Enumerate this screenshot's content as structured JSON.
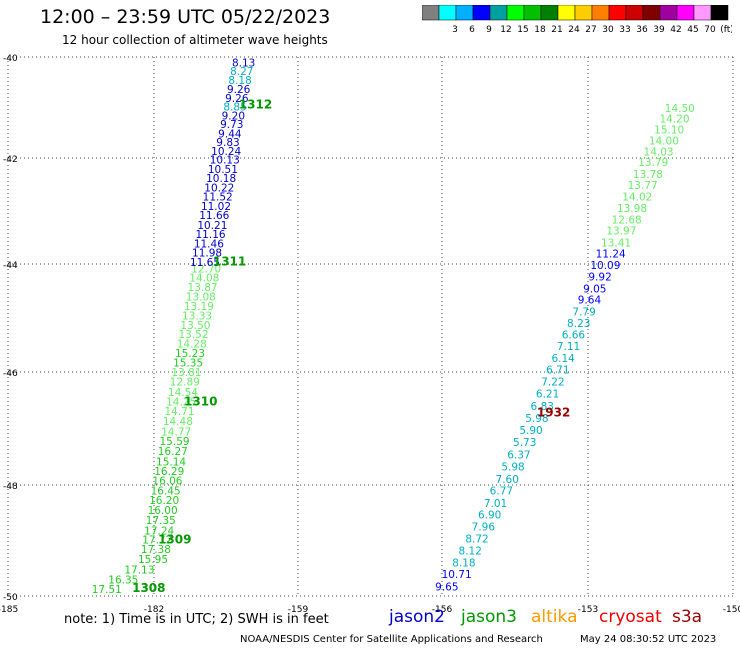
{
  "header": {
    "title": "12:00 – 23:59 UTC 05/22/2023",
    "subtitle": "12 hour collection of altimeter wave heights"
  },
  "legend": {
    "swatches": [
      {
        "color": "#808080",
        "label": ""
      },
      {
        "color": "#00ffff",
        "label": "3"
      },
      {
        "color": "#00b0ff",
        "label": "6"
      },
      {
        "color": "#0000ff",
        "label": "9"
      },
      {
        "color": "#00a0a0",
        "label": "12"
      },
      {
        "color": "#00ff00",
        "label": "15"
      },
      {
        "color": "#00c000",
        "label": "18"
      },
      {
        "color": "#008000",
        "label": "21"
      },
      {
        "color": "#ffff00",
        "label": "24"
      },
      {
        "color": "#ffcc00",
        "label": "27"
      },
      {
        "color": "#ff8000",
        "label": "30"
      },
      {
        "color": "#ff0000",
        "label": "33"
      },
      {
        "color": "#cc0000",
        "label": "36"
      },
      {
        "color": "#800000",
        "label": "39"
      },
      {
        "color": "#a000a0",
        "label": "42"
      },
      {
        "color": "#ff00ff",
        "label": "45"
      },
      {
        "color": "#ff99ff",
        "label": "70"
      },
      {
        "color": "#000000",
        "label": "(ft)"
      }
    ]
  },
  "chart_data": {
    "type": "scatter",
    "xlim": [
      -185,
      -150
    ],
    "ylim": [
      -50,
      -40
    ],
    "xticks": [
      {
        "v": -185,
        "label": "-185"
      },
      {
        "v": -182,
        "label": "-182"
      },
      {
        "v": -159,
        "label": "-159"
      },
      {
        "v": -156,
        "label": "-156"
      },
      {
        "v": -153,
        "label": "-153"
      },
      {
        "v": -150,
        "label": "-150"
      }
    ],
    "yticks": [
      {
        "v": -40,
        "label": "-40"
      },
      {
        "v": -42,
        "label": "-42"
      },
      {
        "v": -44,
        "label": "-44"
      },
      {
        "v": -46,
        "label": "-46"
      },
      {
        "v": -48,
        "label": "-48"
      },
      {
        "v": -50,
        "label": "-50"
      }
    ],
    "grid": true,
    "colors": {
      "c6": "#00b0c0",
      "c9": "#0000cc",
      "c12": "#0000ff",
      "c15": "#66ee66",
      "c18": "#22cc22",
      "c21": "#009900",
      "c30": "#990000"
    },
    "tracks": [
      {
        "points": [
          {
            "x": -182.97,
            "y": -49.87,
            "v": "17.51",
            "c": "c18"
          },
          {
            "x": -182.63,
            "y": -49.7,
            "v": "16.35",
            "c": "c18"
          },
          {
            "x": -182.3,
            "y": -49.52,
            "v": "17.13",
            "c": "c18"
          },
          {
            "x": -182.02,
            "y": -49.33,
            "v": "15.95",
            "c": "c18"
          },
          {
            "x": -181.7,
            "y": -49.15,
            "v": "17.38",
            "c": "c18"
          },
          {
            "x": -181.48,
            "y": -48.98,
            "v": "17.72",
            "c": "c18"
          },
          {
            "x": -181.17,
            "y": -48.82,
            "v": "17.24",
            "c": "c18"
          },
          {
            "x": -180.91,
            "y": -48.63,
            "v": "17.35",
            "c": "c18"
          },
          {
            "x": -180.62,
            "y": -48.45,
            "v": "16.00",
            "c": "c18"
          },
          {
            "x": -180.38,
            "y": -48.27,
            "v": "16.20",
            "c": "c18"
          },
          {
            "x": -180.14,
            "y": -48.1,
            "v": "16.45",
            "c": "c18"
          },
          {
            "x": -179.85,
            "y": -47.92,
            "v": "16.06",
            "c": "c18"
          },
          {
            "x": -179.56,
            "y": -47.75,
            "v": "16.29",
            "c": "c18"
          },
          {
            "x": -179.27,
            "y": -47.58,
            "v": "15.14",
            "c": "c18"
          },
          {
            "x": -179.0,
            "y": -47.4,
            "v": "16.27",
            "c": "c18"
          },
          {
            "x": -178.72,
            "y": -47.22,
            "v": "15.59",
            "c": "c18"
          },
          {
            "x": -178.46,
            "y": -47.05,
            "v": "14.77",
            "c": "c15"
          },
          {
            "x": -178.19,
            "y": -46.87,
            "v": "14.48",
            "c": "c15"
          },
          {
            "x": -177.92,
            "y": -46.69,
            "v": "14.71",
            "c": "c15"
          },
          {
            "x": -177.67,
            "y": -46.52,
            "v": "14.25",
            "c": "c15"
          },
          {
            "x": -177.38,
            "y": -46.35,
            "v": "14.54",
            "c": "c15"
          },
          {
            "x": -177.08,
            "y": -46.17,
            "v": "12.89",
            "c": "c15"
          },
          {
            "x": -176.82,
            "y": -46.0,
            "v": "13.81",
            "c": "c15"
          },
          {
            "x": -176.55,
            "y": -45.82,
            "v": "15.35",
            "c": "c18"
          },
          {
            "x": -176.25,
            "y": -45.65,
            "v": "15.23",
            "c": "c18"
          },
          {
            "x": -175.97,
            "y": -45.47,
            "v": "14.28",
            "c": "c15"
          },
          {
            "x": -175.69,
            "y": -45.3,
            "v": "13.52",
            "c": "c15"
          },
          {
            "x": -175.38,
            "y": -45.13,
            "v": "13.50",
            "c": "c15"
          },
          {
            "x": -175.12,
            "y": -44.95,
            "v": "13.33",
            "c": "c15"
          },
          {
            "x": -174.83,
            "y": -44.78,
            "v": "13.19",
            "c": "c15"
          },
          {
            "x": -174.52,
            "y": -44.6,
            "v": "13.08",
            "c": "c15"
          },
          {
            "x": -174.24,
            "y": -44.43,
            "v": "13.87",
            "c": "c15"
          },
          {
            "x": -173.96,
            "y": -44.25,
            "v": "14.08",
            "c": "c15"
          },
          {
            "x": -173.66,
            "y": -44.08,
            "v": "12.70",
            "c": "c15"
          }
        ],
        "label": {
          "x": -177.2,
          "y": -46.5,
          "text": "1310",
          "c": "c21"
        }
      },
      {
        "points": [
          {
            "x": -173.85,
            "y": -43.96,
            "v": "11.65",
            "c": "c9"
          },
          {
            "x": -173.52,
            "y": -43.78,
            "v": "11.98",
            "c": "c9"
          },
          {
            "x": -173.24,
            "y": -43.61,
            "v": "11.46",
            "c": "c9"
          },
          {
            "x": -172.97,
            "y": -43.43,
            "v": "11.16",
            "c": "c9"
          },
          {
            "x": -172.68,
            "y": -43.26,
            "v": "10.21",
            "c": "c9"
          },
          {
            "x": -172.37,
            "y": -43.08,
            "v": "11.66",
            "c": "c9"
          },
          {
            "x": -172.1,
            "y": -42.91,
            "v": "11.02",
            "c": "c9"
          },
          {
            "x": -171.83,
            "y": -42.73,
            "v": "11.52",
            "c": "c9"
          },
          {
            "x": -171.57,
            "y": -42.56,
            "v": "10.22",
            "c": "c9"
          },
          {
            "x": -171.28,
            "y": -42.38,
            "v": "10.18",
            "c": "c9"
          },
          {
            "x": -171.0,
            "y": -42.21,
            "v": "10.51",
            "c": "c9"
          },
          {
            "x": -170.7,
            "y": -42.03,
            "v": "10.13",
            "c": "c9"
          },
          {
            "x": -170.47,
            "y": -41.86,
            "v": "10.24",
            "c": "c9"
          },
          {
            "x": -170.18,
            "y": -41.68,
            "v": "9.83",
            "c": "c9"
          },
          {
            "x": -169.88,
            "y": -41.51,
            "v": "9.44",
            "c": "c9"
          },
          {
            "x": -169.58,
            "y": -41.33,
            "v": "9.73",
            "c": "c9"
          },
          {
            "x": -169.33,
            "y": -41.16,
            "v": "9.20",
            "c": "c9"
          },
          {
            "x": -169.05,
            "y": -40.98,
            "v": "8.85",
            "c": "c6"
          },
          {
            "x": -168.77,
            "y": -40.81,
            "v": "9.26",
            "c": "c9"
          },
          {
            "x": -168.48,
            "y": -40.63,
            "v": "9.26",
            "c": "c9"
          },
          {
            "x": -168.25,
            "y": -40.46,
            "v": "8.18",
            "c": "c6"
          },
          {
            "x": -167.98,
            "y": -40.28,
            "v": "8.27",
            "c": "c6"
          },
          {
            "x": -167.68,
            "y": -40.11,
            "v": "8.13",
            "c": "c9"
          }
        ],
        "label": {
          "x": -172.6,
          "y": -43.93,
          "text": "1311",
          "c": "c21"
        }
      },
      {
        "points": [
          {
            "x": -155.9,
            "y": -49.83,
            "v": "9.65",
            "c": "c12"
          },
          {
            "x": -155.7,
            "y": -49.6,
            "v": "10.71",
            "c": "c12"
          },
          {
            "x": -155.55,
            "y": -49.4,
            "v": "8.18",
            "c": "c6"
          },
          {
            "x": -155.42,
            "y": -49.18,
            "v": "8.12",
            "c": "c6"
          },
          {
            "x": -155.28,
            "y": -48.96,
            "v": "8.72",
            "c": "c6"
          },
          {
            "x": -155.15,
            "y": -48.75,
            "v": "7.96",
            "c": "c6"
          },
          {
            "x": -155.02,
            "y": -48.53,
            "v": "6.90",
            "c": "c6"
          },
          {
            "x": -154.9,
            "y": -48.32,
            "v": "7.01",
            "c": "c6"
          },
          {
            "x": -154.78,
            "y": -48.1,
            "v": "6.77",
            "c": "c6"
          },
          {
            "x": -154.66,
            "y": -47.89,
            "v": "7.60",
            "c": "c6"
          },
          {
            "x": -154.54,
            "y": -47.67,
            "v": "5.98",
            "c": "c6"
          },
          {
            "x": -154.42,
            "y": -47.46,
            "v": "6.37",
            "c": "c6"
          },
          {
            "x": -154.3,
            "y": -47.24,
            "v": "5.73",
            "c": "c6"
          },
          {
            "x": -154.17,
            "y": -47.03,
            "v": "5.90",
            "c": "c6"
          },
          {
            "x": -154.05,
            "y": -46.81,
            "v": "5.98",
            "c": "c6"
          },
          {
            "x": -153.94,
            "y": -46.6,
            "v": "6.83",
            "c": "c6"
          },
          {
            "x": -153.83,
            "y": -46.38,
            "v": "6.21",
            "c": "c6"
          },
          {
            "x": -153.72,
            "y": -46.17,
            "v": "7.22",
            "c": "c6"
          },
          {
            "x": -153.62,
            "y": -45.95,
            "v": "6.71",
            "c": "c6"
          },
          {
            "x": -153.51,
            "y": -45.74,
            "v": "6.14",
            "c": "c6"
          },
          {
            "x": -153.4,
            "y": -45.52,
            "v": "7.11",
            "c": "c6"
          },
          {
            "x": -153.3,
            "y": -45.31,
            "v": "6.66",
            "c": "c6"
          },
          {
            "x": -153.19,
            "y": -45.09,
            "v": "8.23",
            "c": "c6"
          },
          {
            "x": -153.08,
            "y": -44.88,
            "v": "7.79",
            "c": "c6"
          },
          {
            "x": -152.97,
            "y": -44.66,
            "v": "9.64",
            "c": "c12"
          },
          {
            "x": -152.86,
            "y": -44.45,
            "v": "9.05",
            "c": "c12"
          },
          {
            "x": -152.75,
            "y": -44.23,
            "v": "9.92",
            "c": "c12"
          },
          {
            "x": -152.64,
            "y": -44.02,
            "v": "10.09",
            "c": "c12"
          },
          {
            "x": -152.53,
            "y": -43.8,
            "v": "11.24",
            "c": "c12"
          },
          {
            "x": -152.42,
            "y": -43.59,
            "v": "13.41",
            "c": "c15"
          },
          {
            "x": -152.31,
            "y": -43.37,
            "v": "13.97",
            "c": "c15"
          },
          {
            "x": -152.2,
            "y": -43.16,
            "v": "12.68",
            "c": "c15"
          },
          {
            "x": -152.09,
            "y": -42.94,
            "v": "13.98",
            "c": "c15"
          },
          {
            "x": -151.98,
            "y": -42.73,
            "v": "14.02",
            "c": "c15"
          },
          {
            "x": -151.87,
            "y": -42.51,
            "v": "13.77",
            "c": "c15"
          },
          {
            "x": -151.76,
            "y": -42.3,
            "v": "13.78",
            "c": "c15"
          },
          {
            "x": -151.65,
            "y": -42.08,
            "v": "13.79",
            "c": "c15"
          },
          {
            "x": -151.54,
            "y": -41.87,
            "v": "14.03",
            "c": "c15"
          },
          {
            "x": -151.43,
            "y": -41.65,
            "v": "14.00",
            "c": "c15"
          },
          {
            "x": -151.32,
            "y": -41.44,
            "v": "15.10",
            "c": "c15"
          },
          {
            "x": -151.21,
            "y": -41.22,
            "v": "14.20",
            "c": "c15"
          },
          {
            "x": -151.1,
            "y": -41.01,
            "v": "14.50",
            "c": "c15"
          }
        ],
        "label": {
          "x": -154.05,
          "y": -46.7,
          "text": "1932",
          "c": "c30"
        }
      }
    ],
    "extra_labels": [
      {
        "x": -182.45,
        "y": -49.84,
        "text": "1308",
        "c": "c21"
      },
      {
        "x": -181.35,
        "y": -48.96,
        "text": "1309",
        "c": "c21"
      },
      {
        "x": -168.45,
        "y": -40.92,
        "text": "1312",
        "c": "c21"
      }
    ]
  },
  "footer": {
    "note": "note:  1) Time is in UTC;  2) SWH is in feet",
    "satellites": {
      "jason2": "jason2",
      "jason3": "jason3",
      "altika": "altika",
      "cryosat": "cryosat",
      "s3a": "s3a"
    },
    "credit": "NOAA/NESDIS Center for Satellite Applications and Research",
    "stamp": "May 24 08:30:52 UTC 2023"
  }
}
